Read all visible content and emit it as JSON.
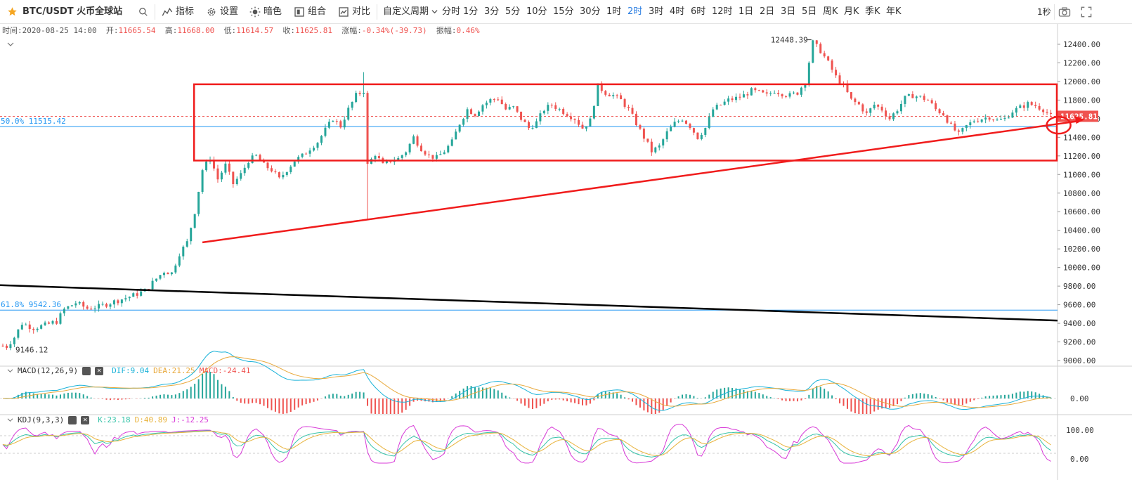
{
  "toolbar": {
    "symbol": "BTC/USDT 火币全球站",
    "star_color": "#f5a623",
    "buttons": {
      "indicators": "指标",
      "settings": "设置",
      "dark": "暗色",
      "combine": "组合",
      "compare": "对比",
      "custom_period": "自定义周期"
    },
    "periods": [
      "分时",
      "1分",
      "3分",
      "5分",
      "10分",
      "15分",
      "30分",
      "1时",
      "2时",
      "3时",
      "4时",
      "6时",
      "12时",
      "1日",
      "2日",
      "3日",
      "5日",
      "周K",
      "月K",
      "季K",
      "年K"
    ],
    "active_period": "2时",
    "refresh_interval": "1秒"
  },
  "ohlc_info": {
    "time_label": "时间:",
    "time": "2020-08-25 14:00",
    "open_label": "开:",
    "open": "11665.54",
    "high_label": "高:",
    "high": "11668.00",
    "low_label": "低:",
    "low": "11614.57",
    "close_label": "收:",
    "close": "11625.81",
    "change_label": "涨幅:",
    "change": "-0.34%(-39.73)",
    "amplitude_label": "振幅:",
    "amplitude": "0.46%"
  },
  "macd": {
    "title": "MACD(12,26,9)",
    "dif": "DIF:9.04",
    "dea": "DEA:21.25",
    "macd": "MACD:-24.41",
    "zero_label": "0.00"
  },
  "kdj": {
    "title": "KDJ(9,3,3)",
    "k": "K:23.18",
    "d": "D:40.89",
    "j": "J:-12.25",
    "top_label": "100.00",
    "bottom_label": "0.00"
  },
  "fib": [
    {
      "label": "50.0% 11515.42",
      "price": 11515.42
    },
    {
      "label": "61.8% 9542.36",
      "price": 9542.36
    }
  ],
  "price_labels": {
    "current": "11625.81",
    "current_price": 11625.81,
    "high_marker": "12448.39",
    "high_price": 12448.39,
    "low_marker": "9146.12",
    "low_price": 9146.12
  },
  "colors": {
    "up": "#26a69a",
    "down": "#ef5350",
    "drawing": "#f01c1c",
    "fib": "#2196f3",
    "trend_black": "#000000",
    "active": "#2a7de1",
    "dif": "#1ab2d8",
    "dea": "#e8a93c",
    "k": "#35c3a8",
    "d": "#e8b33c",
    "j": "#d83ad8"
  },
  "chart_data": {
    "type": "candlestick",
    "symbol": "BTC/USDT",
    "interval": "2h",
    "ylim": [
      8950,
      12600
    ],
    "y_ticks": [
      "12400.00",
      "12200.00",
      "12000.00",
      "11800.00",
      "11600.00",
      "11400.00",
      "11200.00",
      "11000.00",
      "10800.00",
      "10600.00",
      "10400.00",
      "10200.00",
      "10000.00",
      "9800.00",
      "9600.00",
      "9400.00",
      "9200.00",
      "9000.00"
    ],
    "close_path": [
      [
        0,
        9160
      ],
      [
        1,
        9150
      ],
      [
        3,
        9250
      ],
      [
        5,
        9400
      ],
      [
        8,
        9350
      ],
      [
        11,
        9380
      ],
      [
        14,
        9420
      ],
      [
        16,
        9550
      ],
      [
        19,
        9620
      ],
      [
        22,
        9560
      ],
      [
        25,
        9580
      ],
      [
        28,
        9620
      ],
      [
        31,
        9660
      ],
      [
        34,
        9700
      ],
      [
        37,
        9750
      ],
      [
        40,
        9880
      ],
      [
        42,
        9960
      ],
      [
        44,
        9940
      ],
      [
        46,
        10150
      ],
      [
        48,
        10270
      ],
      [
        50,
        10600
      ],
      [
        52,
        11050
      ],
      [
        54,
        11180
      ],
      [
        56,
        10950
      ],
      [
        58,
        11100
      ],
      [
        60,
        10900
      ],
      [
        62,
        11000
      ],
      [
        64,
        11150
      ],
      [
        66,
        11200
      ],
      [
        68,
        11100
      ],
      [
        70,
        11050
      ],
      [
        72,
        10950
      ],
      [
        74,
        11050
      ],
      [
        76,
        11150
      ],
      [
        78,
        11200
      ],
      [
        80,
        11280
      ],
      [
        82,
        11350
      ],
      [
        84,
        11480
      ],
      [
        86,
        11600
      ],
      [
        88,
        11520
      ],
      [
        90,
        11700
      ],
      [
        92,
        11850
      ],
      [
        94,
        11900
      ],
      [
        95,
        11100
      ],
      [
        97,
        11220
      ],
      [
        99,
        11100
      ],
      [
        101,
        11150
      ],
      [
        103,
        11170
      ],
      [
        105,
        11250
      ],
      [
        107,
        11400
      ],
      [
        109,
        11280
      ],
      [
        111,
        11200
      ],
      [
        113,
        11180
      ],
      [
        115,
        11250
      ],
      [
        117,
        11350
      ],
      [
        119,
        11550
      ],
      [
        121,
        11700
      ],
      [
        123,
        11650
      ],
      [
        125,
        11750
      ],
      [
        127,
        11800
      ],
      [
        129,
        11820
      ],
      [
        131,
        11700
      ],
      [
        133,
        11720
      ],
      [
        135,
        11600
      ],
      [
        137,
        11500
      ],
      [
        139,
        11560
      ],
      [
        141,
        11700
      ],
      [
        143,
        11750
      ],
      [
        145,
        11700
      ],
      [
        147,
        11650
      ],
      [
        149,
        11600
      ],
      [
        151,
        11500
      ],
      [
        153,
        11580
      ],
      [
        155,
        11950
      ],
      [
        157,
        11880
      ],
      [
        159,
        11850
      ],
      [
        161,
        11800
      ],
      [
        163,
        11700
      ],
      [
        165,
        11550
      ],
      [
        167,
        11400
      ],
      [
        169,
        11250
      ],
      [
        171,
        11300
      ],
      [
        173,
        11450
      ],
      [
        175,
        11550
      ],
      [
        177,
        11600
      ],
      [
        179,
        11520
      ],
      [
        181,
        11400
      ],
      [
        183,
        11500
      ],
      [
        185,
        11700
      ],
      [
        187,
        11750
      ],
      [
        189,
        11800
      ],
      [
        191,
        11820
      ],
      [
        193,
        11850
      ],
      [
        195,
        11900
      ],
      [
        197,
        11880
      ],
      [
        199,
        11850
      ],
      [
        201,
        11900
      ],
      [
        203,
        11870
      ],
      [
        205,
        11850
      ],
      [
        207,
        11880
      ],
      [
        209,
        12000
      ],
      [
        211,
        12420
      ],
      [
        213,
        12330
      ],
      [
        215,
        12200
      ],
      [
        217,
        12050
      ],
      [
        219,
        11950
      ],
      [
        221,
        11800
      ],
      [
        223,
        11750
      ],
      [
        225,
        11650
      ],
      [
        227,
        11750
      ],
      [
        229,
        11700
      ],
      [
        231,
        11600
      ],
      [
        233,
        11700
      ],
      [
        235,
        11820
      ],
      [
        237,
        11850
      ],
      [
        239,
        11830
      ],
      [
        241,
        11800
      ],
      [
        243,
        11700
      ],
      [
        245,
        11650
      ],
      [
        247,
        11520
      ],
      [
        249,
        11430
      ],
      [
        251,
        11520
      ],
      [
        253,
        11580
      ],
      [
        255,
        11600
      ],
      [
        257,
        11620
      ],
      [
        259,
        11580
      ],
      [
        261,
        11600
      ],
      [
        263,
        11680
      ],
      [
        265,
        11720
      ],
      [
        267,
        11760
      ],
      [
        269,
        11740
      ],
      [
        271,
        11700
      ],
      [
        273,
        11626
      ]
    ],
    "candle_count": 274,
    "annotations": {
      "range_box": {
        "from": 50,
        "to": 273,
        "price_top": 11970,
        "price_bottom": 11150
      },
      "support_line": {
        "from_index": 52,
        "from_price": 10270,
        "to_index": 273,
        "to_price": 11530,
        "extend_to_axis": true
      },
      "black_trend_line": {
        "from_price": 9810,
        "to_price": 9430
      },
      "circle_target": {
        "index": 271,
        "price": 11530
      }
    }
  }
}
